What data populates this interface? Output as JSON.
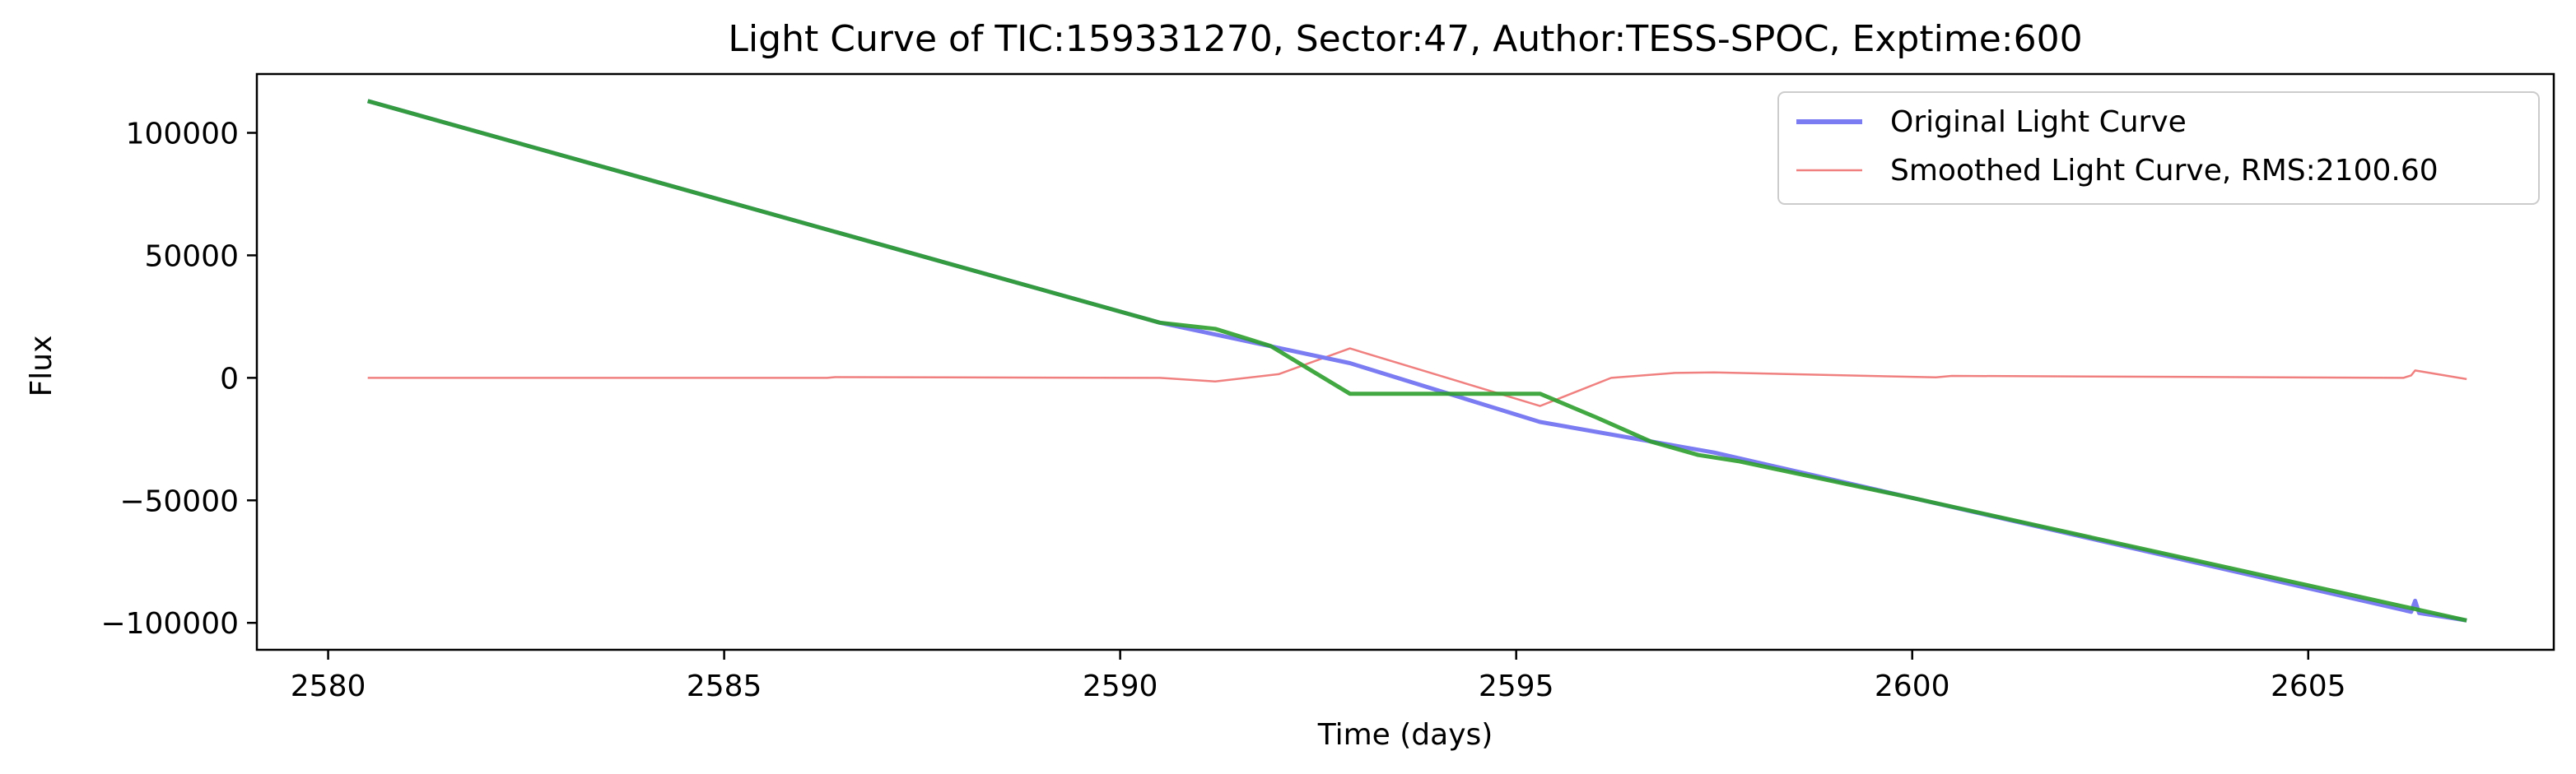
{
  "chart_data": {
    "type": "line",
    "title": "Light Curve of TIC:159331270, Sector:47, Author:TESS-SPOC, Exptime:600",
    "xlabel": "Time (days)",
    "ylabel": "Flux",
    "xlim": [
      2579.1,
      2608.1
    ],
    "ylim": [
      -111000,
      124000
    ],
    "grid": false,
    "legend_placement": "top-right",
    "x_ticks": [
      2580,
      2585,
      2590,
      2595,
      2600,
      2605
    ],
    "x_tick_labels": [
      "2580",
      "2585",
      "2590",
      "2595",
      "2600",
      "2605"
    ],
    "y_ticks": [
      100000,
      50000,
      0,
      -50000,
      -100000
    ],
    "y_tick_labels": [
      "100000",
      "50000",
      "0",
      "−50000",
      "−100000"
    ],
    "series": [
      {
        "name": "Original Light Curve",
        "color": "#7b7bf2",
        "x": [
          2580.5,
          2590.5,
          2592.9,
          2595.3,
          2597.5,
          2600.0,
          2606.3,
          2606.35,
          2606.4,
          2607.0
        ],
        "y": [
          113000,
          22500,
          6000,
          -18000,
          -30500,
          -49000,
          -95500,
          -91000,
          -96000,
          -99000
        ]
      },
      {
        "name": "Smoothed Light Curve, RMS:2100.60",
        "color": "#f08080",
        "x": [
          2580.5,
          2586.3,
          2586.4,
          2590.5,
          2591.2,
          2592.0,
          2592.9,
          2595.3,
          2596.2,
          2597.0,
          2597.5,
          2600.3,
          2600.5,
          2606.2,
          2606.3,
          2606.35,
          2607.0
        ],
        "y": [
          0,
          0,
          300,
          0,
          -1500,
          1500,
          12000,
          -11500,
          0,
          2000,
          2200,
          200,
          800,
          0,
          1000,
          3000,
          -500
        ]
      },
      {
        "color": "#2e9e2e",
        "x": [
          2580.5,
          2590.5,
          2591.2,
          2591.9,
          2592.9,
          2595.3,
          2596.0,
          2596.7,
          2597.3,
          2597.8,
          2600.0,
          2607.0
        ],
        "y": [
          113000,
          22500,
          20000,
          13000,
          -6500,
          -6500,
          -16000,
          -26000,
          -31500,
          -34000,
          -49000,
          -99000
        ]
      }
    ]
  }
}
